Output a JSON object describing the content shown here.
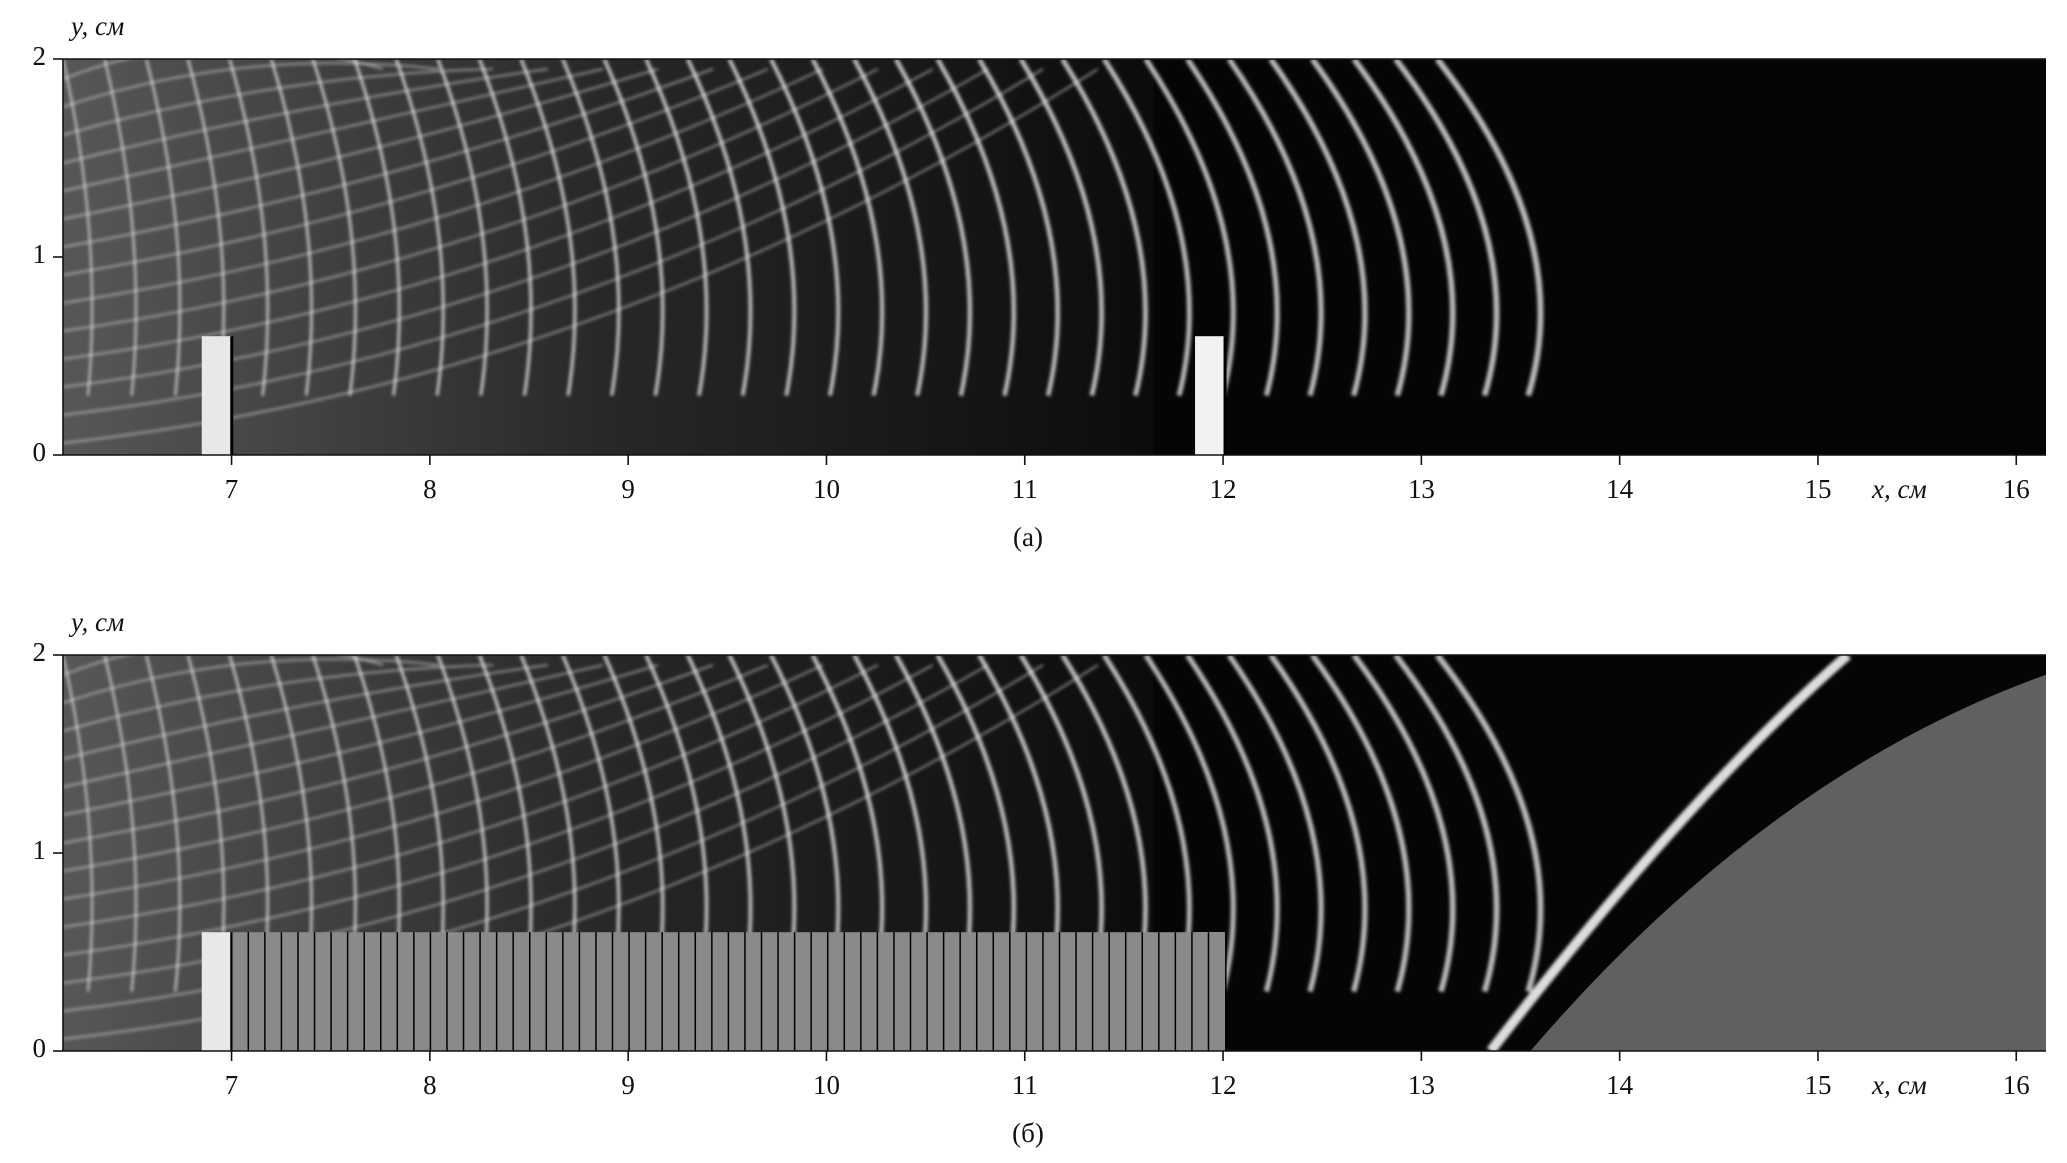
{
  "chart_data": [
    {
      "type": "image",
      "ylabel": "y, см",
      "xlabel": "x, см",
      "caption": "(а)",
      "xlim": [
        6.15,
        16.15
      ],
      "ylim": [
        0,
        2
      ],
      "xticks": [
        7,
        8,
        9,
        10,
        11,
        12,
        13,
        14,
        15,
        16
      ],
      "yticks": [
        0,
        1,
        2
      ]
    },
    {
      "type": "image",
      "ylabel": "y, см",
      "xlabel": "x, см",
      "caption": "(б)",
      "xlim": [
        6.15,
        16.15
      ],
      "ylim": [
        0,
        2
      ],
      "xticks": [
        7,
        8,
        9,
        10,
        11,
        12,
        13,
        14,
        15,
        16
      ],
      "yticks": [
        0,
        1,
        2
      ]
    }
  ]
}
